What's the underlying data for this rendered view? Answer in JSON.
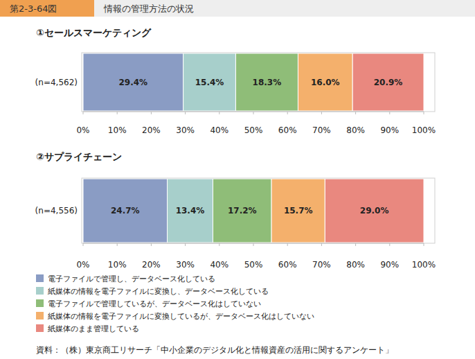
{
  "header": {
    "figure": "第2-3-64図",
    "title": "情報の管理方法の状況"
  },
  "source": "資料：（株）東京商工リサーチ「中小企業のデジタル化と情報資産の活用に関するアンケート」",
  "chart_data": [
    {
      "type": "bar",
      "orientation": "horizontal",
      "stacked": true,
      "data_labels": true,
      "title": "①セールスマーケティング",
      "categories": [
        "(n=4,562)"
      ],
      "xlim": [
        0,
        100
      ],
      "xticks": [
        {
          "value": 0,
          "label": "0%"
        },
        {
          "value": 10,
          "label": "10%"
        },
        {
          "value": 20,
          "label": "20%"
        },
        {
          "value": 30,
          "label": "30%"
        },
        {
          "value": 40,
          "label": "40%"
        },
        {
          "value": 50,
          "label": "50%"
        },
        {
          "value": 60,
          "label": "60%"
        },
        {
          "value": 70,
          "label": "70%"
        },
        {
          "value": 80,
          "label": "80%"
        },
        {
          "value": 90,
          "label": "90%"
        },
        {
          "value": 100,
          "label": "100%"
        }
      ],
      "legend": "bottom",
      "series": [
        {
          "name": "電子ファイルで管理し、データベース化している",
          "color": "#8a9cc4",
          "values": [
            29.4
          ],
          "value_labels": [
            "29.4%"
          ]
        },
        {
          "name": "紙媒体の情報を電子ファイルに変換し、データベース化している",
          "color": "#a7cfcb",
          "values": [
            15.4
          ],
          "value_labels": [
            "15.4%"
          ]
        },
        {
          "name": "電子ファイルで管理しているが、データベース化はしていない",
          "color": "#8fbd78",
          "values": [
            18.3
          ],
          "value_labels": [
            "18.3%"
          ]
        },
        {
          "name": "紙媒体の情報を電子ファイルに変換しているが、データベース化はしていない",
          "color": "#f4b06c",
          "values": [
            16.0
          ],
          "value_labels": [
            "16.0%"
          ]
        },
        {
          "name": "紙媒体のまま管理している",
          "color": "#e9887f",
          "values": [
            20.9
          ],
          "value_labels": [
            "20.9%"
          ]
        }
      ]
    },
    {
      "type": "bar",
      "orientation": "horizontal",
      "stacked": true,
      "data_labels": true,
      "title": "②サプライチェーン",
      "categories": [
        "(n=4,556)"
      ],
      "xlim": [
        0,
        100
      ],
      "xticks": [
        {
          "value": 0,
          "label": "0%"
        },
        {
          "value": 10,
          "label": "10%"
        },
        {
          "value": 20,
          "label": "20%"
        },
        {
          "value": 30,
          "label": "30%"
        },
        {
          "value": 40,
          "label": "40%"
        },
        {
          "value": 50,
          "label": "50%"
        },
        {
          "value": 60,
          "label": "60%"
        },
        {
          "value": 70,
          "label": "70%"
        },
        {
          "value": 80,
          "label": "80%"
        },
        {
          "value": 90,
          "label": "90%"
        },
        {
          "value": 100,
          "label": "100%"
        }
      ],
      "series": [
        {
          "name": "電子ファイルで管理し、データベース化している",
          "color": "#8a9cc4",
          "values": [
            24.7
          ],
          "value_labels": [
            "24.7%"
          ]
        },
        {
          "name": "紙媒体の情報を電子ファイルに変換し、データベース化している",
          "color": "#a7cfcb",
          "values": [
            13.4
          ],
          "value_labels": [
            "13.4%"
          ]
        },
        {
          "name": "電子ファイルで管理しているが、データベース化はしていない",
          "color": "#8fbd78",
          "values": [
            17.2
          ],
          "value_labels": [
            "17.2%"
          ]
        },
        {
          "name": "紙媒体の情報を電子ファイルに変換しているが、データベース化はしていない",
          "color": "#f4b06c",
          "values": [
            15.7
          ],
          "value_labels": [
            "15.7%"
          ]
        },
        {
          "name": "紙媒体のまま管理している",
          "color": "#e9887f",
          "values": [
            29.0
          ],
          "value_labels": [
            "29.0%"
          ]
        }
      ]
    }
  ]
}
